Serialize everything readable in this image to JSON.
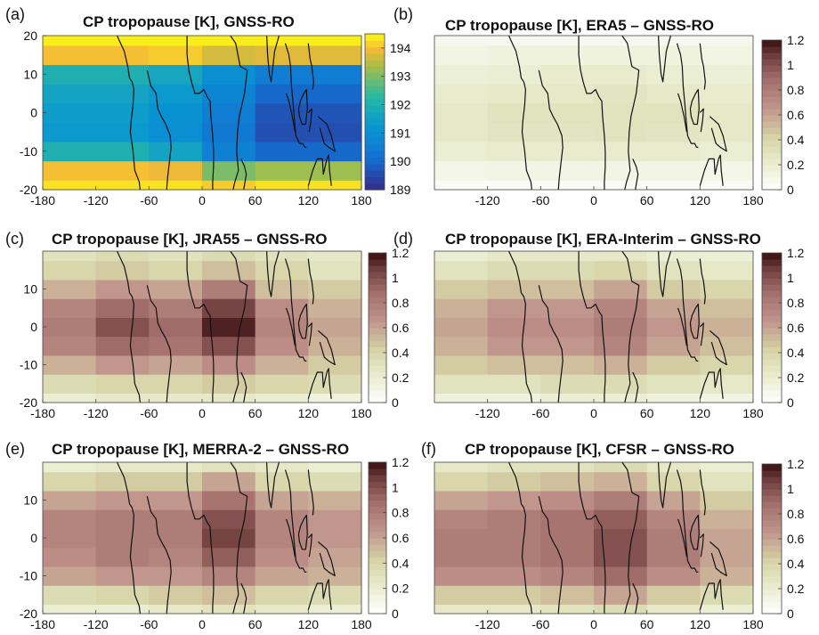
{
  "chart_data": [
    {
      "panel": "(a)",
      "type": "heatmap",
      "title": "CP tropopause [K], GNSS-RO",
      "x_ticks": [
        -180,
        -120,
        -60,
        0,
        60,
        120,
        180
      ],
      "y_ticks": [
        -20,
        -10,
        0,
        10,
        20
      ],
      "xlim": [
        -180,
        180
      ],
      "ylim": [
        -20,
        20
      ],
      "colormap": "parula",
      "colorbar": {
        "min": 189,
        "max": 194.5,
        "ticks": [
          "189",
          "190",
          "191",
          "192",
          "193",
          "194"
        ]
      },
      "x_edges": [
        -180,
        -60,
        0,
        60,
        180
      ],
      "y_edges": [
        -20,
        -17.5,
        -12.5,
        -7.5,
        -2.5,
        2.5,
        7.5,
        12.5,
        17.5,
        20
      ],
      "z": [
        [
          194.3,
          194.3,
          194.1,
          194.3
        ],
        [
          194.0,
          193.9,
          193.0,
          193.3
        ],
        [
          192.0,
          191.6,
          190.6,
          190.0
        ],
        [
          191.3,
          191.0,
          190.4,
          189.6
        ],
        [
          191.4,
          191.1,
          190.5,
          189.7
        ],
        [
          191.6,
          191.3,
          190.7,
          190.0
        ],
        [
          192.0,
          191.7,
          191.0,
          190.5
        ],
        [
          194.0,
          194.1,
          193.7,
          193.8
        ],
        [
          194.4,
          194.4,
          194.4,
          194.4
        ]
      ]
    },
    {
      "panel": "(b)",
      "type": "heatmap",
      "title": "CP tropopause [K], ERA5 – GNSS-RO",
      "x_ticks": [
        -120,
        -60,
        0,
        60,
        120,
        180
      ],
      "y_ticks": [],
      "xlim": [
        -180,
        180
      ],
      "ylim": [
        -20,
        20
      ],
      "colormap": "pink_r",
      "colorbar": {
        "min": 0,
        "max": 1.2,
        "ticks": [
          "0",
          "0.2",
          "0.4",
          "0.6",
          "0.8",
          "1",
          "1.2"
        ]
      },
      "x_edges": [
        -180,
        -120,
        -60,
        0,
        60,
        120,
        180
      ],
      "y_edges": [
        -20,
        -17.5,
        -12.5,
        -7.5,
        -2.5,
        2.5,
        7.5,
        12.5,
        17.5,
        20
      ],
      "z": [
        [
          0.05,
          0.05,
          0.05,
          0.05,
          0.05,
          0.05
        ],
        [
          0.1,
          0.12,
          0.12,
          0.12,
          0.12,
          0.1
        ],
        [
          0.2,
          0.22,
          0.22,
          0.22,
          0.22,
          0.2
        ],
        [
          0.25,
          0.28,
          0.28,
          0.3,
          0.28,
          0.25
        ],
        [
          0.25,
          0.3,
          0.3,
          0.3,
          0.3,
          0.25
        ],
        [
          0.22,
          0.25,
          0.25,
          0.28,
          0.25,
          0.22
        ],
        [
          0.18,
          0.2,
          0.22,
          0.22,
          0.2,
          0.18
        ],
        [
          0.12,
          0.15,
          0.15,
          0.15,
          0.15,
          0.12
        ],
        [
          0.08,
          0.08,
          0.08,
          0.08,
          0.08,
          0.08
        ]
      ]
    },
    {
      "panel": "(c)",
      "type": "heatmap",
      "title": "CP tropopause [K], JRA55 – GNSS-RO",
      "x_ticks": [
        -180,
        -120,
        -60,
        0,
        60,
        120,
        180
      ],
      "y_ticks": [
        -20,
        -10,
        0,
        10
      ],
      "xlim": [
        -180,
        180
      ],
      "ylim": [
        -20,
        20
      ],
      "colormap": "pink_r",
      "colorbar": {
        "min": 0,
        "max": 1.2,
        "ticks": [
          "0",
          "0.2",
          "0.4",
          "0.6",
          "0.8",
          "1",
          "1.2"
        ]
      },
      "x_edges": [
        -180,
        -120,
        -60,
        0,
        60,
        120,
        180
      ],
      "y_edges": [
        -20,
        -17.5,
        -12.5,
        -7.5,
        -2.5,
        2.5,
        7.5,
        12.5,
        17.5,
        20
      ],
      "z": [
        [
          0.2,
          0.25,
          0.25,
          0.25,
          0.2,
          0.15
        ],
        [
          0.35,
          0.4,
          0.4,
          0.45,
          0.4,
          0.35
        ],
        [
          0.55,
          0.65,
          0.6,
          0.7,
          0.55,
          0.45
        ],
        [
          0.75,
          0.9,
          0.85,
          1.0,
          0.7,
          0.55
        ],
        [
          0.8,
          1.0,
          0.9,
          1.15,
          0.75,
          0.6
        ],
        [
          0.75,
          0.9,
          0.8,
          1.05,
          0.7,
          0.55
        ],
        [
          0.55,
          0.65,
          0.6,
          0.8,
          0.5,
          0.45
        ],
        [
          0.4,
          0.45,
          0.4,
          0.5,
          0.4,
          0.3
        ],
        [
          0.3,
          0.35,
          0.3,
          0.35,
          0.3,
          0.25
        ]
      ]
    },
    {
      "panel": "(d)",
      "type": "heatmap",
      "title": "CP tropopause [K], ERA-Interim – GNSS-RO",
      "x_ticks": [
        -120,
        -60,
        0,
        60,
        120,
        180
      ],
      "y_ticks": [],
      "xlim": [
        -180,
        180
      ],
      "ylim": [
        -20,
        20
      ],
      "colormap": "pink_r",
      "colorbar": {
        "min": 0,
        "max": 1.2,
        "ticks": [
          "0",
          "0.2",
          "0.4",
          "0.6",
          "0.8",
          "1",
          "1.2"
        ]
      },
      "x_edges": [
        -180,
        -120,
        -60,
        0,
        60,
        120,
        180
      ],
      "y_edges": [
        -20,
        -17.5,
        -12.5,
        -7.5,
        -2.5,
        2.5,
        7.5,
        12.5,
        17.5,
        20
      ],
      "z": [
        [
          0.15,
          0.15,
          0.2,
          0.2,
          0.15,
          0.12
        ],
        [
          0.3,
          0.3,
          0.35,
          0.35,
          0.3,
          0.25
        ],
        [
          0.45,
          0.5,
          0.5,
          0.55,
          0.45,
          0.4
        ],
        [
          0.55,
          0.65,
          0.65,
          0.75,
          0.6,
          0.5
        ],
        [
          0.6,
          0.7,
          0.7,
          0.8,
          0.65,
          0.55
        ],
        [
          0.55,
          0.65,
          0.65,
          0.75,
          0.6,
          0.5
        ],
        [
          0.45,
          0.5,
          0.5,
          0.6,
          0.45,
          0.4
        ],
        [
          0.3,
          0.35,
          0.35,
          0.4,
          0.3,
          0.25
        ],
        [
          0.2,
          0.25,
          0.25,
          0.25,
          0.2,
          0.18
        ]
      ]
    },
    {
      "panel": "(e)",
      "type": "heatmap",
      "title": "CP tropopause [K], MERRA-2 – GNSS-RO",
      "x_ticks": [
        -180,
        -120,
        -60,
        0,
        60,
        120,
        180
      ],
      "y_ticks": [
        -20,
        -10,
        0,
        10
      ],
      "xlim": [
        -180,
        180
      ],
      "ylim": [
        -20,
        20
      ],
      "colormap": "pink_r",
      "colorbar": {
        "min": 0,
        "max": 1.2,
        "ticks": [
          "0",
          "0.2",
          "0.4",
          "0.6",
          "0.8",
          "1",
          "1.2"
        ]
      },
      "x_edges": [
        -180,
        -120,
        -60,
        0,
        60,
        120,
        180
      ],
      "y_edges": [
        -20,
        -17.5,
        -12.5,
        -7.5,
        -2.5,
        2.5,
        7.5,
        12.5,
        17.5,
        20
      ],
      "z": [
        [
          0.2,
          0.2,
          0.25,
          0.3,
          0.25,
          0.2
        ],
        [
          0.35,
          0.4,
          0.45,
          0.5,
          0.4,
          0.35
        ],
        [
          0.6,
          0.65,
          0.65,
          0.75,
          0.6,
          0.55
        ],
        [
          0.7,
          0.8,
          0.75,
          0.95,
          0.7,
          0.6
        ],
        [
          0.75,
          0.8,
          0.8,
          1.05,
          0.75,
          0.65
        ],
        [
          0.75,
          0.8,
          0.8,
          1.0,
          0.75,
          0.65
        ],
        [
          0.6,
          0.65,
          0.65,
          0.85,
          0.6,
          0.55
        ],
        [
          0.4,
          0.45,
          0.45,
          0.6,
          0.4,
          0.35
        ],
        [
          0.2,
          0.25,
          0.25,
          0.3,
          0.25,
          0.2
        ]
      ]
    },
    {
      "panel": "(f)",
      "type": "heatmap",
      "title": "CP tropopause [K], CFSR – GNSS-RO",
      "x_ticks": [
        -120,
        -60,
        0,
        60,
        120,
        180
      ],
      "y_ticks": [],
      "xlim": [
        -180,
        180
      ],
      "ylim": [
        -20,
        20
      ],
      "colormap": "pink_r",
      "colorbar": {
        "min": 0,
        "max": 1.2,
        "ticks": [
          "0",
          "0.2",
          "0.4",
          "0.6",
          "0.8",
          "1",
          "1.2"
        ]
      },
      "x_edges": [
        -180,
        -120,
        -60,
        0,
        60,
        120,
        180
      ],
      "y_edges": [
        -20,
        -17.5,
        -12.5,
        -7.5,
        -2.5,
        2.5,
        7.5,
        12.5,
        17.5,
        20
      ],
      "z": [
        [
          0.25,
          0.25,
          0.3,
          0.35,
          0.25,
          0.2
        ],
        [
          0.45,
          0.45,
          0.5,
          0.6,
          0.45,
          0.35
        ],
        [
          0.7,
          0.7,
          0.75,
          0.9,
          0.7,
          0.55
        ],
        [
          0.8,
          0.8,
          0.85,
          1.0,
          0.8,
          0.6
        ],
        [
          0.8,
          0.8,
          0.85,
          1.0,
          0.8,
          0.6
        ],
        [
          0.75,
          0.8,
          0.85,
          0.95,
          0.75,
          0.55
        ],
        [
          0.6,
          0.65,
          0.7,
          0.8,
          0.6,
          0.45
        ],
        [
          0.4,
          0.45,
          0.5,
          0.55,
          0.4,
          0.3
        ],
        [
          0.25,
          0.3,
          0.3,
          0.35,
          0.25,
          0.2
        ]
      ]
    }
  ]
}
